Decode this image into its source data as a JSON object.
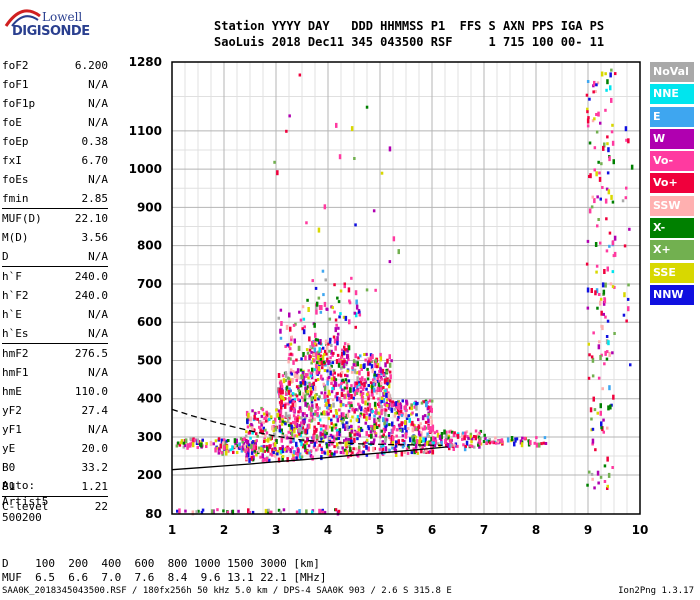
{
  "logo": {
    "line1": "Lowell",
    "line2": "DIGISONDE"
  },
  "header": {
    "line1": "Station YYYY DAY   DDD HHMMSS P1  FFS S AXN PPS IGA PS",
    "line2": "SaoLuis 2018 Dec11 345 043500 RSF     1 715 100 00- 11"
  },
  "params": [
    [
      {
        "name": "foF2",
        "value": "6.200"
      },
      {
        "name": "foF1",
        "value": "N/A"
      },
      {
        "name": "foF1p",
        "value": "N/A"
      },
      {
        "name": "foE",
        "value": "N/A"
      },
      {
        "name": "foEp",
        "value": "0.38"
      },
      {
        "name": "fxI",
        "value": "6.70"
      },
      {
        "name": "foEs",
        "value": "N/A"
      },
      {
        "name": "fmin",
        "value": "2.85"
      }
    ],
    [
      {
        "name": "MUF(D)",
        "value": "22.10"
      },
      {
        "name": "M(D)",
        "value": "3.56"
      },
      {
        "name": "D",
        "value": "N/A"
      }
    ],
    [
      {
        "name": "h`F",
        "value": "240.0"
      },
      {
        "name": "h`F2",
        "value": "240.0"
      },
      {
        "name": "h`E",
        "value": "N/A"
      },
      {
        "name": "h`Es",
        "value": "N/A"
      }
    ],
    [
      {
        "name": "hmF2",
        "value": "276.5"
      },
      {
        "name": "hmF1",
        "value": "N/A"
      },
      {
        "name": "hmE",
        "value": "110.0"
      },
      {
        "name": "yF2",
        "value": "27.4"
      },
      {
        "name": "yF1",
        "value": "N/A"
      },
      {
        "name": "yE",
        "value": "20.0"
      },
      {
        "name": "B0",
        "value": "33.2"
      },
      {
        "name": "B1",
        "value": "1.21"
      }
    ],
    [
      {
        "name": "C-level",
        "value": "22"
      }
    ]
  ],
  "auto": {
    "line1": "Auto:",
    "line2": "Artist5",
    "line3": "500200"
  },
  "dmuf": {
    "d_row": "D    100  200  400  600  800 1000 1500 3000 [km]",
    "muf_row": "MUF  6.5  6.6  7.0  7.6  8.4  9.6 13.1 22.1 [MHz]"
  },
  "footer": {
    "text": "SAA0K_2018345043500.RSF / 180fx256h 50 kHz 5.0 km / DPS-4 SAA0K 903 / 2.6 S 315.8 E",
    "version": "Ion2Png 1.3.17"
  },
  "legend": [
    {
      "label": "NoVal",
      "color": "#a9a9a9"
    },
    {
      "label": "NNE",
      "color": "#00e5ee"
    },
    {
      "label": "E",
      "color": "#3ea6f0"
    },
    {
      "label": "W",
      "color": "#b000b0"
    },
    {
      "label": "Vo-",
      "color": "#ff3aa0"
    },
    {
      "label": "Vo+",
      "color": "#f0003c"
    },
    {
      "label": "SSW",
      "color": "#ffb0b0"
    },
    {
      "label": "X-",
      "color": "#008000"
    },
    {
      "label": "X+",
      "color": "#72b050"
    },
    {
      "label": "SSE",
      "color": "#d8d800"
    },
    {
      "label": "NNW",
      "color": "#1010e0"
    }
  ],
  "chart_data": {
    "type": "scatter",
    "x_ticks": [
      1,
      2,
      3,
      4,
      5,
      6,
      7,
      8,
      9,
      10
    ],
    "y_ticks": [
      80,
      200,
      300,
      400,
      500,
      600,
      700,
      800,
      900,
      1000,
      1100,
      1280
    ],
    "xlim": [
      1,
      10
    ],
    "ylim": [
      80,
      1280
    ],
    "grid": true,
    "x_minor_per_major": 4,
    "y_minor_per_major": 2,
    "solid_trace": [
      [
        1.0,
        214
      ],
      [
        1.5,
        219
      ],
      [
        2.0,
        224
      ],
      [
        2.5,
        229
      ],
      [
        3.0,
        235
      ],
      [
        3.5,
        240
      ],
      [
        4.0,
        246
      ],
      [
        4.5,
        252
      ],
      [
        5.0,
        258
      ],
      [
        5.5,
        264
      ],
      [
        6.0,
        270
      ],
      [
        6.3,
        274
      ]
    ],
    "dashed_trace": [
      [
        1.0,
        372
      ],
      [
        1.4,
        355
      ],
      [
        1.8,
        340
      ],
      [
        2.2,
        326
      ],
      [
        2.6,
        313
      ],
      [
        3.0,
        302
      ],
      [
        3.5,
        292
      ],
      [
        4.0,
        286
      ],
      [
        4.6,
        282
      ],
      [
        5.2,
        280
      ],
      [
        5.8,
        279
      ],
      [
        6.2,
        278
      ]
    ],
    "echo_regions": [
      {
        "x0": 1.0,
        "x1": 1.8,
        "y0": 274,
        "y1": 300,
        "count": 40
      },
      {
        "x0": 1.8,
        "x1": 2.6,
        "y0": 262,
        "y1": 300,
        "count": 80
      },
      {
        "x0": 2.4,
        "x1": 3.0,
        "y0": 240,
        "y1": 380,
        "count": 140
      },
      {
        "x0": 3.0,
        "x1": 3.6,
        "y0": 245,
        "y1": 480,
        "count": 300
      },
      {
        "x0": 3.6,
        "x1": 4.4,
        "y0": 250,
        "y1": 560,
        "count": 420
      },
      {
        "x0": 4.4,
        "x1": 5.2,
        "y0": 255,
        "y1": 520,
        "count": 380
      },
      {
        "x0": 5.2,
        "x1": 6.0,
        "y0": 260,
        "y1": 400,
        "count": 220
      },
      {
        "x0": 6.0,
        "x1": 7.0,
        "y0": 275,
        "y1": 320,
        "count": 90
      },
      {
        "x0": 7.0,
        "x1": 8.2,
        "y0": 285,
        "y1": 303,
        "count": 45
      },
      {
        "x0": 3.0,
        "x1": 3.6,
        "y0": 500,
        "y1": 650,
        "count": 40
      },
      {
        "x0": 3.6,
        "x1": 4.6,
        "y0": 560,
        "y1": 720,
        "count": 55
      },
      {
        "x0": 2.6,
        "x1": 5.4,
        "y0": 650,
        "y1": 1250,
        "count": 25
      },
      {
        "x0": 8.95,
        "x1": 9.5,
        "y0": 160,
        "y1": 1270,
        "count": 170
      },
      {
        "x0": 9.65,
        "x1": 9.85,
        "y0": 350,
        "y1": 1130,
        "count": 16
      },
      {
        "x0": 1.0,
        "x1": 4.2,
        "y0": 82,
        "y1": 98,
        "count": 70
      }
    ]
  }
}
